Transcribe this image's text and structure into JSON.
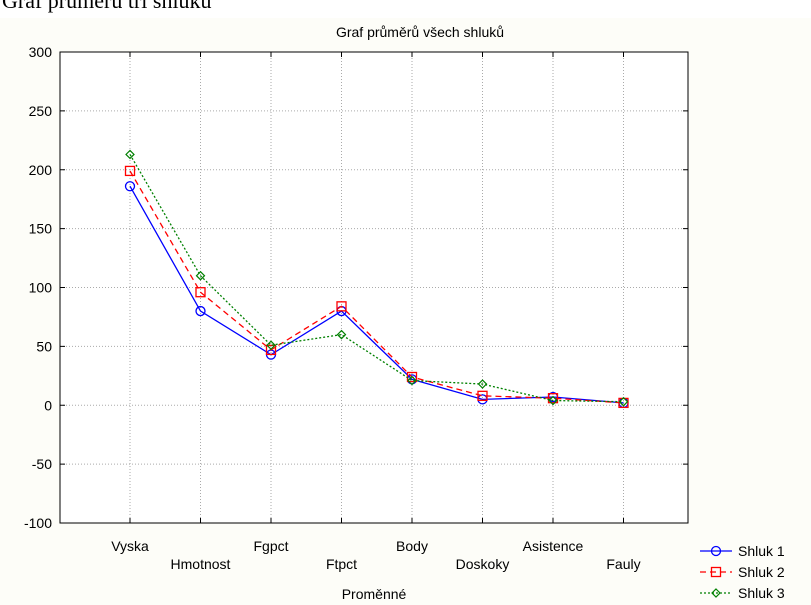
{
  "header": {
    "title": "Graf průměrů tří shluků"
  },
  "chart_data": {
    "type": "line",
    "title": "Graf průměrů všech shluků",
    "x_label": "Proměnné",
    "categories": [
      "Vyska",
      "Hmotnost",
      "Fgpct",
      "Ftpct",
      "Body",
      "Doskoky",
      "Asistence",
      "Fauly"
    ],
    "series": [
      {
        "name": "Shluk 1",
        "color": "#0000ff",
        "marker": "circle",
        "dash": "solid",
        "values": [
          186,
          80,
          43,
          80,
          22,
          5,
          7,
          2
        ]
      },
      {
        "name": "Shluk 2",
        "color": "#ff0000",
        "marker": "square",
        "dash": "dashed",
        "values": [
          199,
          96,
          47,
          84,
          24,
          8,
          6,
          2
        ]
      },
      {
        "name": "Shluk 3",
        "color": "#008000",
        "marker": "diamond",
        "dash": "dotted",
        "values": [
          213,
          110,
          51,
          60,
          21,
          18,
          4,
          3
        ]
      }
    ],
    "ylim": [
      -100,
      300
    ],
    "yticks": [
      -100,
      -50,
      0,
      50,
      100,
      150,
      200,
      250,
      300
    ],
    "grid": true,
    "legend": "bottom-right"
  }
}
